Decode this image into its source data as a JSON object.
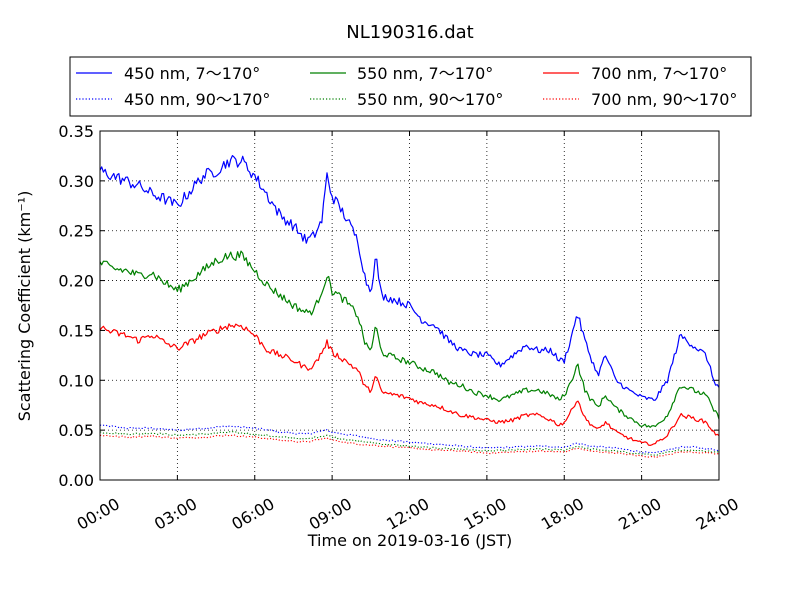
{
  "chart_data": {
    "type": "line",
    "title": "NL190316.dat",
    "xlabel": "Time on 2019-03-16 (JST)",
    "ylabel": "Scattering Coefficient (km⁻¹)",
    "xlim": [
      0,
      24
    ],
    "ylim": [
      0,
      0.35
    ],
    "grid": true,
    "legend_placement": "top",
    "x_ticks": [
      {
        "value": 0,
        "label": "00:00"
      },
      {
        "value": 3,
        "label": "03:00"
      },
      {
        "value": 6,
        "label": "06:00"
      },
      {
        "value": 9,
        "label": "09:00"
      },
      {
        "value": 12,
        "label": "12:00"
      },
      {
        "value": 15,
        "label": "15:00"
      },
      {
        "value": 18,
        "label": "18:00"
      },
      {
        "value": 21,
        "label": "21:00"
      },
      {
        "value": 24,
        "label": "24:00"
      }
    ],
    "y_ticks": [
      {
        "value": 0.0,
        "label": "0.00"
      },
      {
        "value": 0.05,
        "label": "0.05"
      },
      {
        "value": 0.1,
        "label": "0.10"
      },
      {
        "value": 0.15,
        "label": "0.15"
      },
      {
        "value": 0.2,
        "label": "0.20"
      },
      {
        "value": 0.25,
        "label": "0.25"
      },
      {
        "value": 0.3,
        "label": "0.30"
      },
      {
        "value": 0.35,
        "label": "0.35"
      }
    ],
    "series": [
      {
        "name": "450 nm, 7～170°",
        "color": "#0000ff",
        "style": "solid",
        "points": [
          [
            0,
            0.31
          ],
          [
            0.5,
            0.305
          ],
          [
            1,
            0.3
          ],
          [
            1.5,
            0.295
          ],
          [
            2,
            0.287
          ],
          [
            2.5,
            0.282
          ],
          [
            3,
            0.275
          ],
          [
            3.5,
            0.29
          ],
          [
            4,
            0.305
          ],
          [
            4.5,
            0.31
          ],
          [
            5,
            0.32
          ],
          [
            5.5,
            0.32
          ],
          [
            6,
            0.305
          ],
          [
            6.5,
            0.285
          ],
          [
            7,
            0.265
          ],
          [
            7.5,
            0.255
          ],
          [
            8,
            0.24
          ],
          [
            8.3,
            0.245
          ],
          [
            8.6,
            0.26
          ],
          [
            8.8,
            0.305
          ],
          [
            9,
            0.285
          ],
          [
            9.5,
            0.265
          ],
          [
            10,
            0.24
          ],
          [
            10.3,
            0.2
          ],
          [
            10.5,
            0.19
          ],
          [
            10.7,
            0.225
          ],
          [
            10.9,
            0.185
          ],
          [
            11.5,
            0.18
          ],
          [
            12,
            0.175
          ],
          [
            12.5,
            0.16
          ],
          [
            13,
            0.155
          ],
          [
            13.5,
            0.14
          ],
          [
            14,
            0.13
          ],
          [
            14.5,
            0.126
          ],
          [
            15,
            0.125
          ],
          [
            15.5,
            0.115
          ],
          [
            16,
            0.125
          ],
          [
            16.5,
            0.135
          ],
          [
            17,
            0.13
          ],
          [
            17.5,
            0.13
          ],
          [
            17.8,
            0.12
          ],
          [
            18,
            0.12
          ],
          [
            18.3,
            0.145
          ],
          [
            18.5,
            0.168
          ],
          [
            18.8,
            0.14
          ],
          [
            19,
            0.125
          ],
          [
            19.3,
            0.105
          ],
          [
            19.6,
            0.125
          ],
          [
            20,
            0.1
          ],
          [
            20.5,
            0.09
          ],
          [
            21,
            0.083
          ],
          [
            21.5,
            0.08
          ],
          [
            22,
            0.1
          ],
          [
            22.5,
            0.145
          ],
          [
            23,
            0.135
          ],
          [
            23.5,
            0.125
          ],
          [
            23.8,
            0.1
          ],
          [
            24,
            0.092
          ]
        ]
      },
      {
        "name": "550 nm, 7～170°",
        "color": "#008000",
        "style": "solid",
        "points": [
          [
            0,
            0.218
          ],
          [
            0.5,
            0.212
          ],
          [
            1,
            0.21
          ],
          [
            1.5,
            0.205
          ],
          [
            2,
            0.208
          ],
          [
            2.5,
            0.198
          ],
          [
            3,
            0.19
          ],
          [
            3.5,
            0.2
          ],
          [
            4,
            0.21
          ],
          [
            4.5,
            0.22
          ],
          [
            5,
            0.225
          ],
          [
            5.5,
            0.225
          ],
          [
            6,
            0.21
          ],
          [
            6.5,
            0.195
          ],
          [
            7,
            0.185
          ],
          [
            7.5,
            0.175
          ],
          [
            8,
            0.168
          ],
          [
            8.3,
            0.17
          ],
          [
            8.6,
            0.19
          ],
          [
            8.8,
            0.205
          ],
          [
            9,
            0.19
          ],
          [
            9.5,
            0.18
          ],
          [
            10,
            0.165
          ],
          [
            10.3,
            0.135
          ],
          [
            10.5,
            0.13
          ],
          [
            10.7,
            0.155
          ],
          [
            10.9,
            0.128
          ],
          [
            11.5,
            0.122
          ],
          [
            12,
            0.118
          ],
          [
            12.5,
            0.112
          ],
          [
            13,
            0.108
          ],
          [
            13.5,
            0.098
          ],
          [
            14,
            0.095
          ],
          [
            14.5,
            0.088
          ],
          [
            15,
            0.085
          ],
          [
            15.5,
            0.08
          ],
          [
            16,
            0.085
          ],
          [
            16.5,
            0.09
          ],
          [
            17,
            0.09
          ],
          [
            17.5,
            0.085
          ],
          [
            17.8,
            0.08
          ],
          [
            18,
            0.085
          ],
          [
            18.3,
            0.1
          ],
          [
            18.5,
            0.118
          ],
          [
            18.8,
            0.09
          ],
          [
            19,
            0.082
          ],
          [
            19.3,
            0.073
          ],
          [
            19.6,
            0.085
          ],
          [
            20,
            0.072
          ],
          [
            20.5,
            0.063
          ],
          [
            21,
            0.055
          ],
          [
            21.5,
            0.053
          ],
          [
            22,
            0.065
          ],
          [
            22.5,
            0.095
          ],
          [
            23,
            0.09
          ],
          [
            23.5,
            0.085
          ],
          [
            23.8,
            0.07
          ],
          [
            24,
            0.063
          ]
        ]
      },
      {
        "name": "700 nm, 7～170°",
        "color": "#ff0000",
        "style": "solid",
        "points": [
          [
            0,
            0.153
          ],
          [
            0.5,
            0.148
          ],
          [
            1,
            0.145
          ],
          [
            1.5,
            0.14
          ],
          [
            2,
            0.146
          ],
          [
            2.5,
            0.138
          ],
          [
            3,
            0.132
          ],
          [
            3.5,
            0.138
          ],
          [
            4,
            0.145
          ],
          [
            4.5,
            0.15
          ],
          [
            5,
            0.155
          ],
          [
            5.5,
            0.155
          ],
          [
            6,
            0.145
          ],
          [
            6.5,
            0.13
          ],
          [
            7,
            0.125
          ],
          [
            7.5,
            0.12
          ],
          [
            8,
            0.112
          ],
          [
            8.3,
            0.115
          ],
          [
            8.6,
            0.128
          ],
          [
            8.8,
            0.138
          ],
          [
            9,
            0.128
          ],
          [
            9.5,
            0.12
          ],
          [
            10,
            0.11
          ],
          [
            10.3,
            0.092
          ],
          [
            10.5,
            0.09
          ],
          [
            10.7,
            0.105
          ],
          [
            10.9,
            0.088
          ],
          [
            11.5,
            0.085
          ],
          [
            12,
            0.082
          ],
          [
            12.5,
            0.077
          ],
          [
            13,
            0.075
          ],
          [
            13.5,
            0.07
          ],
          [
            14,
            0.065
          ],
          [
            14.5,
            0.063
          ],
          [
            15,
            0.06
          ],
          [
            15.5,
            0.058
          ],
          [
            16,
            0.06
          ],
          [
            16.5,
            0.065
          ],
          [
            17,
            0.065
          ],
          [
            17.5,
            0.06
          ],
          [
            17.8,
            0.055
          ],
          [
            18,
            0.058
          ],
          [
            18.3,
            0.07
          ],
          [
            18.5,
            0.082
          ],
          [
            18.8,
            0.062
          ],
          [
            19,
            0.057
          ],
          [
            19.3,
            0.05
          ],
          [
            19.6,
            0.058
          ],
          [
            20,
            0.048
          ],
          [
            20.5,
            0.042
          ],
          [
            21,
            0.037
          ],
          [
            21.5,
            0.036
          ],
          [
            22,
            0.045
          ],
          [
            22.5,
            0.065
          ],
          [
            23,
            0.062
          ],
          [
            23.5,
            0.058
          ],
          [
            23.8,
            0.048
          ],
          [
            24,
            0.043
          ]
        ]
      },
      {
        "name": "450 nm, 90～170°",
        "color": "#0000ff",
        "style": "dotted",
        "points": [
          [
            0,
            0.055
          ],
          [
            1,
            0.052
          ],
          [
            2,
            0.052
          ],
          [
            3,
            0.05
          ],
          [
            4,
            0.052
          ],
          [
            5,
            0.054
          ],
          [
            6,
            0.052
          ],
          [
            7,
            0.048
          ],
          [
            8,
            0.046
          ],
          [
            8.8,
            0.05
          ],
          [
            9,
            0.048
          ],
          [
            10,
            0.044
          ],
          [
            11,
            0.04
          ],
          [
            12,
            0.038
          ],
          [
            13,
            0.036
          ],
          [
            14,
            0.034
          ],
          [
            15,
            0.032
          ],
          [
            16,
            0.033
          ],
          [
            17,
            0.034
          ],
          [
            18,
            0.033
          ],
          [
            18.5,
            0.037
          ],
          [
            19,
            0.034
          ],
          [
            20,
            0.032
          ],
          [
            21,
            0.028
          ],
          [
            21.5,
            0.027
          ],
          [
            22.5,
            0.033
          ],
          [
            23,
            0.033
          ],
          [
            24,
            0.03
          ]
        ]
      },
      {
        "name": "550 nm, 90～170°",
        "color": "#008000",
        "style": "dotted",
        "points": [
          [
            0,
            0.048
          ],
          [
            1,
            0.046
          ],
          [
            2,
            0.047
          ],
          [
            3,
            0.045
          ],
          [
            4,
            0.046
          ],
          [
            5,
            0.048
          ],
          [
            6,
            0.046
          ],
          [
            7,
            0.043
          ],
          [
            8,
            0.041
          ],
          [
            8.8,
            0.045
          ],
          [
            9,
            0.043
          ],
          [
            10,
            0.039
          ],
          [
            11,
            0.036
          ],
          [
            12,
            0.034
          ],
          [
            13,
            0.032
          ],
          [
            14,
            0.031
          ],
          [
            15,
            0.029
          ],
          [
            16,
            0.03
          ],
          [
            17,
            0.031
          ],
          [
            18,
            0.03
          ],
          [
            18.5,
            0.034
          ],
          [
            19,
            0.031
          ],
          [
            20,
            0.029
          ],
          [
            21,
            0.026
          ],
          [
            21.5,
            0.025
          ],
          [
            22.5,
            0.03
          ],
          [
            23,
            0.03
          ],
          [
            24,
            0.028
          ]
        ]
      },
      {
        "name": "700 nm, 90～170°",
        "color": "#ff0000",
        "style": "dotted",
        "points": [
          [
            0,
            0.045
          ],
          [
            1,
            0.043
          ],
          [
            2,
            0.044
          ],
          [
            3,
            0.042
          ],
          [
            4,
            0.043
          ],
          [
            5,
            0.045
          ],
          [
            6,
            0.043
          ],
          [
            7,
            0.04
          ],
          [
            8,
            0.038
          ],
          [
            8.8,
            0.042
          ],
          [
            9,
            0.04
          ],
          [
            10,
            0.036
          ],
          [
            11,
            0.034
          ],
          [
            12,
            0.032
          ],
          [
            13,
            0.03
          ],
          [
            14,
            0.029
          ],
          [
            15,
            0.027
          ],
          [
            16,
            0.028
          ],
          [
            17,
            0.029
          ],
          [
            18,
            0.028
          ],
          [
            18.5,
            0.032
          ],
          [
            19,
            0.029
          ],
          [
            20,
            0.027
          ],
          [
            21,
            0.024
          ],
          [
            21.5,
            0.023
          ],
          [
            22.5,
            0.028
          ],
          [
            23,
            0.028
          ],
          [
            24,
            0.026
          ]
        ]
      }
    ]
  }
}
